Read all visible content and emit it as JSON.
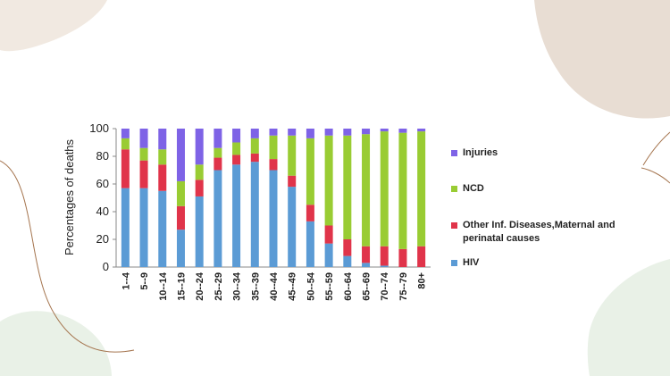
{
  "chart_data": {
    "type": "bar",
    "stacked": true,
    "y_label": "Percentages of deaths",
    "categories": [
      "1--4",
      "5--9",
      "10--14",
      "15--19",
      "20--24",
      "25--29",
      "30--34",
      "35--39",
      "40--44",
      "45--49",
      "50--54",
      "55--59",
      "60--64",
      "65--69",
      "70--74",
      "75--79",
      "80+"
    ],
    "series": [
      {
        "name": "HIV",
        "color": "#5b9bd5",
        "values": [
          57,
          57,
          55,
          27,
          51,
          70,
          74,
          76,
          70,
          58,
          33,
          17,
          8,
          3,
          1,
          0,
          0
        ]
      },
      {
        "name": "Other Inf. Diseases,Maternal and perinatal causes",
        "color": "#e0344a",
        "values": [
          28,
          20,
          19,
          17,
          12,
          9,
          7,
          6,
          8,
          8,
          12,
          13,
          12,
          12,
          14,
          13,
          15
        ]
      },
      {
        "name": "NCD",
        "color": "#99cc33",
        "values": [
          8,
          9,
          11,
          18,
          11,
          7,
          9,
          11,
          17,
          29,
          48,
          65,
          75,
          81,
          83,
          84,
          83
        ]
      },
      {
        "name": "Injuries",
        "color": "#7e63e6",
        "values": [
          7,
          14,
          15,
          38,
          26,
          14,
          10,
          7,
          5,
          5,
          7,
          5,
          5,
          4,
          2,
          3,
          2
        ]
      }
    ],
    "ylim": [
      0,
      100
    ],
    "yticks": [
      0,
      20,
      40,
      60,
      80,
      100
    ],
    "grid": false
  }
}
